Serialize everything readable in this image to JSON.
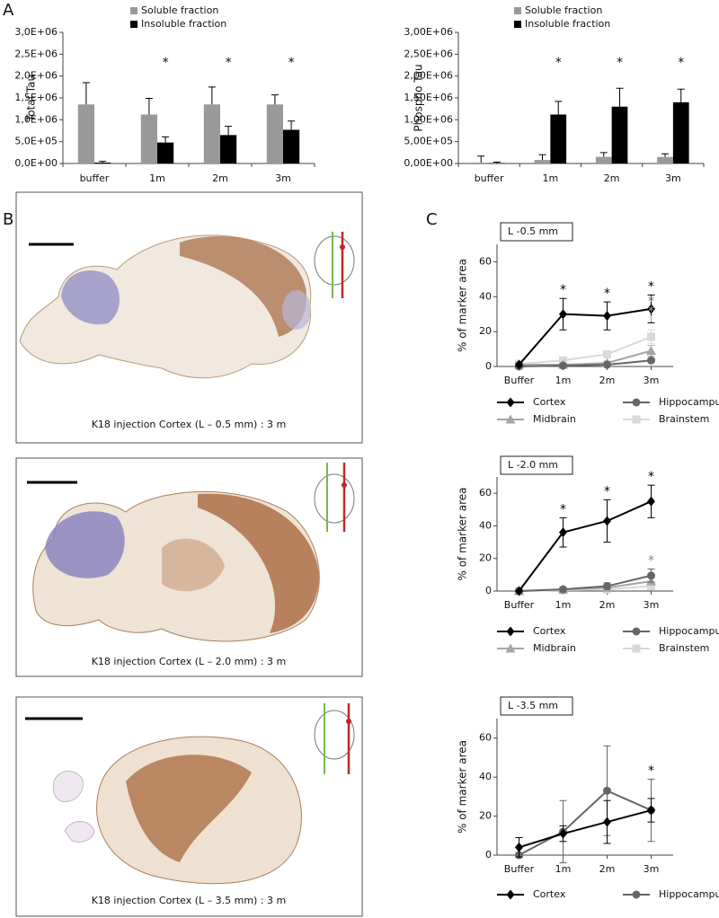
{
  "panel_labels": [
    "A",
    "B",
    "C"
  ],
  "images": [
    {
      "caption": "K18 injection Cortex (L – 0.5 mm) : 3 m"
    },
    {
      "caption": "K18 injection Cortex (L – 2.0 mm) : 3 m"
    },
    {
      "caption": "K18 injection Cortex (L – 3.5 mm) : 3 m"
    }
  ],
  "chart_data": [
    {
      "type": "bar",
      "y_label": "Total Tau",
      "categories": [
        "buffer",
        "1m",
        "2m",
        "3m"
      ],
      "series": [
        {
          "name": "Soluble fraction",
          "color": "#999999",
          "values": [
            1350000,
            1120000,
            1350000,
            1350000
          ],
          "errors": [
            500000,
            370000,
            400000,
            220000
          ]
        },
        {
          "name": "Insoluble fraction",
          "color": "#000000",
          "values": [
            20000,
            480000,
            650000,
            770000
          ],
          "errors": [
            30000,
            130000,
            200000,
            200000
          ]
        }
      ],
      "annotations": [
        {
          "text": "*",
          "x": "1m",
          "series": 1
        },
        {
          "text": "*",
          "x": "2m",
          "series": 1
        },
        {
          "text": "*",
          "x": "3m",
          "series": 1
        }
      ],
      "ylim": [
        0,
        3000000
      ],
      "yticks": [
        {
          "value": 0,
          "label": "0,0E+00"
        },
        {
          "value": 500000,
          "label": "5,0E+05"
        },
        {
          "value": 1000000,
          "label": "1,0E+06"
        },
        {
          "value": 1500000,
          "label": "1,5E+06"
        },
        {
          "value": 2000000,
          "label": "2,0E+06"
        },
        {
          "value": 2500000,
          "label": "2,5E+06"
        },
        {
          "value": 3000000,
          "label": "3,0E+06"
        }
      ],
      "grid": false
    },
    {
      "type": "bar",
      "y_label": "Phospho Tau",
      "categories": [
        "buffer",
        "1m",
        "2m",
        "3m"
      ],
      "series": [
        {
          "name": "Soluble fraction",
          "color": "#999999",
          "values": [
            20000,
            80000,
            150000,
            150000
          ],
          "errors": [
            150000,
            120000,
            100000,
            70000
          ]
        },
        {
          "name": "Insoluble fraction",
          "color": "#000000",
          "values": [
            10000,
            1120000,
            1300000,
            1400000
          ],
          "errors": [
            20000,
            300000,
            420000,
            300000
          ]
        }
      ],
      "annotations": [
        {
          "text": "*",
          "x": "1m",
          "series": 1
        },
        {
          "text": "*",
          "x": "2m",
          "series": 1
        },
        {
          "text": "*",
          "x": "3m",
          "series": 1
        }
      ],
      "ylim": [
        0,
        3000000
      ],
      "yticks": [
        {
          "value": 0,
          "label": "0,00E+00"
        },
        {
          "value": 500000,
          "label": "5,00E+05"
        },
        {
          "value": 1000000,
          "label": "1,00E+06"
        },
        {
          "value": 1500000,
          "label": "1,50E+06"
        },
        {
          "value": 2000000,
          "label": "2,00E+06"
        },
        {
          "value": 2500000,
          "label": "2,50E+06"
        },
        {
          "value": 3000000,
          "label": "3,00E+06"
        }
      ],
      "grid": false
    },
    {
      "type": "line",
      "title": "L -0.5 mm",
      "y_label": "% of marker area",
      "categories": [
        "Buffer",
        "1m",
        "2m",
        "3m"
      ],
      "series": [
        {
          "name": "Cortex",
          "color": "#000000",
          "marker": "diamond",
          "values": [
            1,
            30,
            29,
            33
          ],
          "errors": [
            1,
            9,
            8,
            8
          ]
        },
        {
          "name": "Hippocampus",
          "color": "#666666",
          "marker": "circle",
          "values": [
            0,
            0.5,
            1,
            3.5
          ],
          "errors": [
            0,
            0.5,
            0.5,
            1
          ]
        },
        {
          "name": "Midbrain",
          "color": "#a6a6a6",
          "marker": "triangle",
          "values": [
            1,
            1,
            2,
            9
          ],
          "errors": [
            0.5,
            0.5,
            1,
            3
          ]
        },
        {
          "name": "Brainstem",
          "color": "#d9d9d9",
          "marker": "square",
          "values": [
            1.5,
            3.5,
            7,
            17
          ],
          "errors": [
            0.5,
            1,
            1,
            4
          ]
        }
      ],
      "annotations": [
        {
          "text": "*",
          "x": "1m",
          "series": 0,
          "color": "#000000"
        },
        {
          "text": "*",
          "x": "2m",
          "series": 0,
          "color": "#000000"
        },
        {
          "text": "*",
          "x": "3m",
          "series": 3,
          "color": "#d9d9d9"
        },
        {
          "text": "*",
          "x": "3m",
          "series": 2,
          "color": "#a6a6a6"
        },
        {
          "text": "*",
          "x": "3m",
          "series": 1,
          "color": "#666666"
        },
        {
          "text": "*",
          "x": "3m",
          "series": 0,
          "color": "#000000"
        }
      ],
      "ylim": [
        0,
        70
      ],
      "yticks": [
        0,
        20,
        40,
        60
      ],
      "grid": false
    },
    {
      "type": "line",
      "title": "L -2.0 mm",
      "y_label": "% of marker area",
      "categories": [
        "Buffer",
        "1m",
        "2m",
        "3m"
      ],
      "series": [
        {
          "name": "Cortex",
          "color": "#000000",
          "marker": "diamond",
          "values": [
            0,
            36,
            43,
            55
          ],
          "errors": [
            0,
            9,
            13,
            10
          ]
        },
        {
          "name": "Hippocampus",
          "color": "#666666",
          "marker": "circle",
          "values": [
            0,
            1,
            3,
            9.5
          ],
          "errors": [
            0,
            0.5,
            2,
            4
          ]
        },
        {
          "name": "Midbrain",
          "color": "#a6a6a6",
          "marker": "triangle",
          "values": [
            0,
            1,
            2,
            6
          ],
          "errors": [
            0,
            0.5,
            1,
            2
          ]
        },
        {
          "name": "Brainstem",
          "color": "#d9d9d9",
          "marker": "square",
          "values": [
            0,
            0.5,
            1,
            3
          ],
          "errors": [
            0,
            0.5,
            0.5,
            1
          ]
        }
      ],
      "annotations": [
        {
          "text": "*",
          "x": "1m",
          "series": 0,
          "color": "#000000"
        },
        {
          "text": "*",
          "x": "2m",
          "series": 0,
          "color": "#000000"
        },
        {
          "text": "*",
          "x": "3m",
          "series": 1,
          "color": "#888888"
        },
        {
          "text": "*",
          "x": "3m",
          "series": 0,
          "color": "#000000"
        }
      ],
      "ylim": [
        0,
        70
      ],
      "yticks": [
        0,
        20,
        40,
        60
      ],
      "grid": false
    },
    {
      "type": "line",
      "title": "L -3.5 mm",
      "y_label": "% of marker area",
      "categories": [
        "Buffer",
        "1m",
        "2m",
        "3m"
      ],
      "series": [
        {
          "name": "Cortex",
          "color": "#000000",
          "marker": "diamond",
          "values": [
            4,
            11,
            17,
            23
          ],
          "errors": [
            5,
            4,
            11,
            6
          ]
        },
        {
          "name": "Hippocampus",
          "color": "#666666",
          "marker": "circle",
          "values": [
            0,
            12,
            33,
            23
          ],
          "errors": [
            1,
            16,
            23,
            16
          ]
        }
      ],
      "annotations": [
        {
          "text": "*",
          "x": "3m",
          "series": 1,
          "color": "#000000"
        }
      ],
      "ylim": [
        0,
        70
      ],
      "yticks": [
        0,
        20,
        40,
        60
      ],
      "grid": false
    }
  ]
}
